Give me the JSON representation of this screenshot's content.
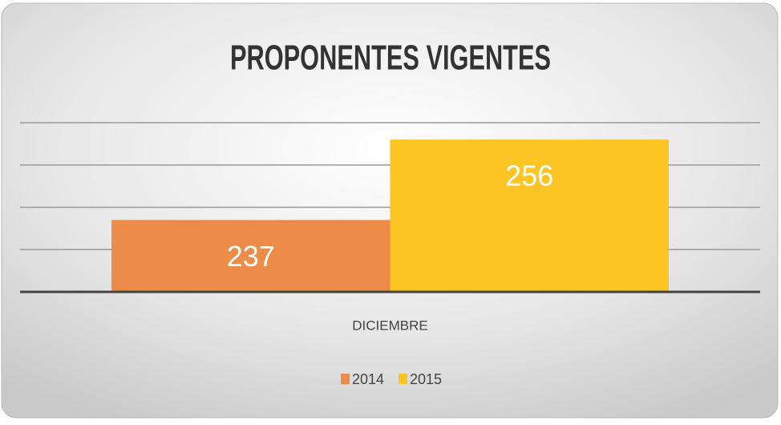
{
  "chart_data": {
    "type": "bar",
    "title": "PROPONENTES VIGENTES",
    "categories": [
      "DICIEMBRE"
    ],
    "series": [
      {
        "name": "2014",
        "color": "#ed8b49",
        "values": [
          237
        ]
      },
      {
        "name": "2015",
        "color": "#fcc523",
        "values": [
          256
        ]
      }
    ],
    "ylim": [
      220,
      260
    ],
    "yticks": [
      220,
      230,
      240,
      250,
      260
    ],
    "grid": true,
    "legend": "bottom"
  }
}
